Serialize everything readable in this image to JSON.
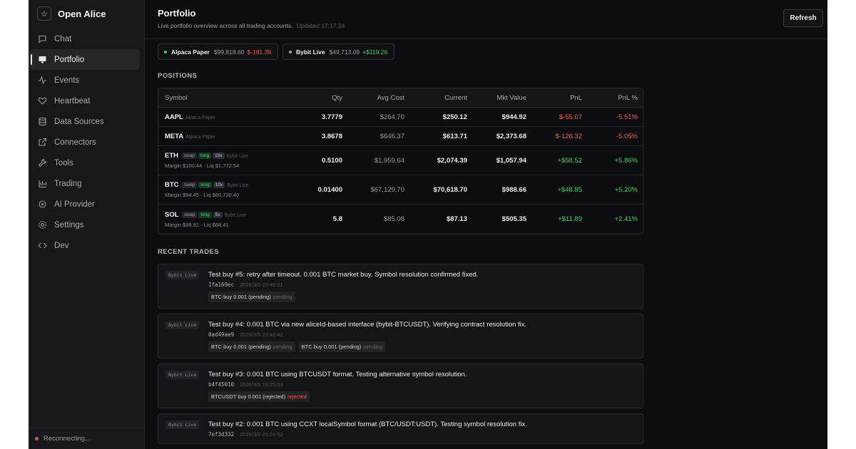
{
  "app": {
    "name": "Open Alice"
  },
  "sidebar": {
    "items": [
      {
        "label": "Chat",
        "icon": "chat-icon"
      },
      {
        "label": "Portfolio",
        "icon": "monitor-icon",
        "active": true
      },
      {
        "label": "Events",
        "icon": "activity-icon"
      },
      {
        "label": "Heartbeat",
        "icon": "heart-icon"
      },
      {
        "label": "Data Sources",
        "icon": "database-icon"
      },
      {
        "label": "Connectors",
        "icon": "external-link-icon"
      },
      {
        "label": "Tools",
        "icon": "wrench-icon"
      },
      {
        "label": "Trading",
        "icon": "trading-icon"
      },
      {
        "label": "AI Provider",
        "icon": "ai-icon"
      },
      {
        "label": "Settings",
        "icon": "gear-icon"
      },
      {
        "label": "Dev",
        "icon": "code-icon"
      }
    ],
    "status": "Reconnecting..."
  },
  "header": {
    "title": "Portfolio",
    "subtitle": "Live portfolio overview across all trading accounts.",
    "updated": "Updated 17:17:24",
    "refresh_label": "Refresh"
  },
  "accounts": [
    {
      "name": "Alpaca Paper",
      "value": "$99,818.60",
      "pnl": "$-181.39",
      "dot_color": "#3fcf6b"
    },
    {
      "name": "Bybit Live",
      "value": "$49,713.09",
      "pnl": "+$119.26",
      "dot_color": "#a0a0a8"
    }
  ],
  "positions": {
    "section_title": "POSITIONS",
    "columns": [
      "Symbol",
      "Qty",
      "Avg Cost",
      "Current",
      "Mkt Value",
      "PnL",
      "PnL %"
    ],
    "rows": [
      {
        "symbol": "AAPL",
        "account": "Alpaca Paper",
        "qty": "3.7779",
        "avg": "$264.70",
        "current": "$250.12",
        "mkt": "$944.92",
        "pnl": "$-55.07",
        "pnl_pct": "-5.51%"
      },
      {
        "symbol": "META",
        "account": "Alpaca Paper",
        "qty": "3.8678",
        "avg": "$646.37",
        "current": "$613.71",
        "mkt": "$2,373.68",
        "pnl": "$-126.32",
        "pnl_pct": "-5.05%"
      },
      {
        "symbol": "ETH",
        "tags": [
          "swap",
          "long",
          "10x"
        ],
        "account": "Bybit Live",
        "margin": "Margin $100.44 · Liq $1,772.54",
        "qty": "0.5100",
        "avg": "$1,959.64",
        "current": "$2,074.39",
        "mkt": "$1,057.94",
        "pnl": "+$58.52",
        "pnl_pct": "+5.86%"
      },
      {
        "symbol": "BTC",
        "tags": [
          "swap",
          "long",
          "10x"
        ],
        "account": "Bybit Live",
        "margin": "Margin $94.45 · Liq $60,720.40",
        "qty": "0.01400",
        "avg": "$67,129.70",
        "current": "$70,618.70",
        "mkt": "$988.66",
        "pnl": "+$48.85",
        "pnl_pct": "+5.20%"
      },
      {
        "symbol": "SOL",
        "tags": [
          "swap",
          "long",
          "5x"
        ],
        "account": "Bybit Live",
        "margin": "Margin $98.91 · Liq $68.41",
        "qty": "5.8",
        "avg": "$85.08",
        "current": "$87.13",
        "mkt": "$505.35",
        "pnl": "+$11.89",
        "pnl_pct": "+2.41%"
      }
    ]
  },
  "trades": {
    "section_title": "RECENT TRADES",
    "items": [
      {
        "account": "Bybit Live",
        "title": "Test buy #5: retry after timeout. 0.001 BTC market buy. Symbol resolution confirmed fixed.",
        "hash": "1fa169ec",
        "time": "2026/3/5 23:49:01",
        "orders": [
          {
            "text": "BTC buy 0.001 (pending)",
            "status": "pending"
          }
        ]
      },
      {
        "account": "Bybit Live",
        "title": "Test buy #4: 0.001 BTC via new aliceId-based interface (bybit-BTCUSDT). Verifying contract resolution fix.",
        "hash": "0ad49ae9",
        "time": "2026/3/5 23:48:42",
        "orders": [
          {
            "text": "BTC buy 0.001 (pending)",
            "status": "pending"
          },
          {
            "text": "BTC buy 0.001 (pending)",
            "status": "pending"
          }
        ]
      },
      {
        "account": "Bybit Live",
        "title": "Test buy #3: 0.001 BTC using BTCUSDT format. Testing alternative symbol resolution.",
        "hash": "b4f45010",
        "time": "2026/3/5 23:25:03",
        "orders": [
          {
            "text": "BTCUSDT buy 0.001 (rejected)",
            "status": "rejected"
          }
        ]
      },
      {
        "account": "Bybit Live",
        "title": "Test buy #2: 0.001 BTC using CCXT localSymbol format (BTC/USDT:USDT). Testing symbol resolution fix.",
        "hash": "7ef3d332",
        "time": "2026/3/5 23:24:52",
        "orders": []
      }
    ]
  }
}
